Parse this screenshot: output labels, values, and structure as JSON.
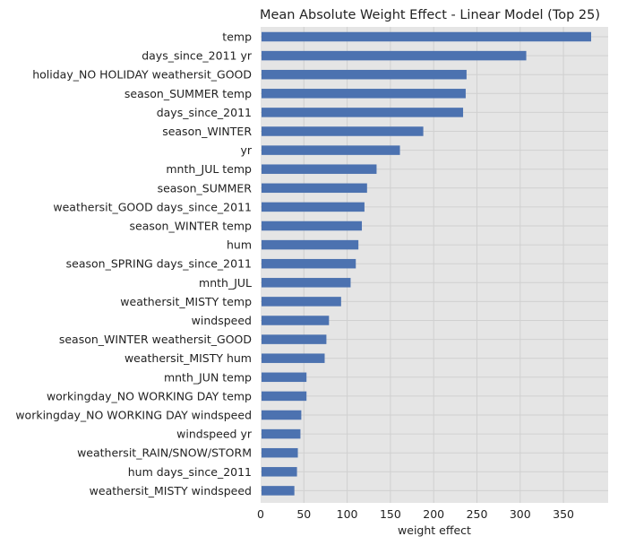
{
  "chart_data": {
    "type": "bar",
    "orientation": "horizontal",
    "title": "Mean Absolute Weight Effect - Linear Model (Top 25)",
    "xlabel": "weight effect",
    "ylabel": "",
    "xlim": [
      0,
      400
    ],
    "xticks": [
      0,
      50,
      100,
      150,
      200,
      250,
      300,
      350
    ],
    "grid": true,
    "colors": {
      "bar": "#4c72b0",
      "background": "#e5e5e5",
      "grid": "#d0d0d0"
    },
    "categories": [
      "temp",
      "days_since_2011 yr",
      "holiday_NO HOLIDAY weathersit_GOOD",
      "season_SUMMER temp",
      "days_since_2011",
      "season_WINTER",
      "yr",
      "mnth_JUL temp",
      "season_SUMMER",
      "weathersit_GOOD days_since_2011",
      "season_WINTER temp",
      "hum",
      "season_SPRING days_since_2011",
      "mnth_JUL",
      "weathersit_MISTY temp",
      "windspeed",
      "season_WINTER weathersit_GOOD",
      "weathersit_MISTY hum",
      "mnth_JUN temp",
      "workingday_NO WORKING DAY temp",
      "workingday_NO WORKING DAY windspeed",
      "windspeed yr",
      "weathersit_RAIN/SNOW/STORM",
      "hum days_since_2011",
      "weathersit_MISTY windspeed"
    ],
    "values": [
      382,
      307,
      238,
      237,
      234,
      188,
      161,
      134,
      123,
      120,
      117,
      113,
      110,
      104,
      93,
      79,
      76,
      74,
      53,
      53,
      47,
      46,
      43,
      42,
      39
    ]
  }
}
